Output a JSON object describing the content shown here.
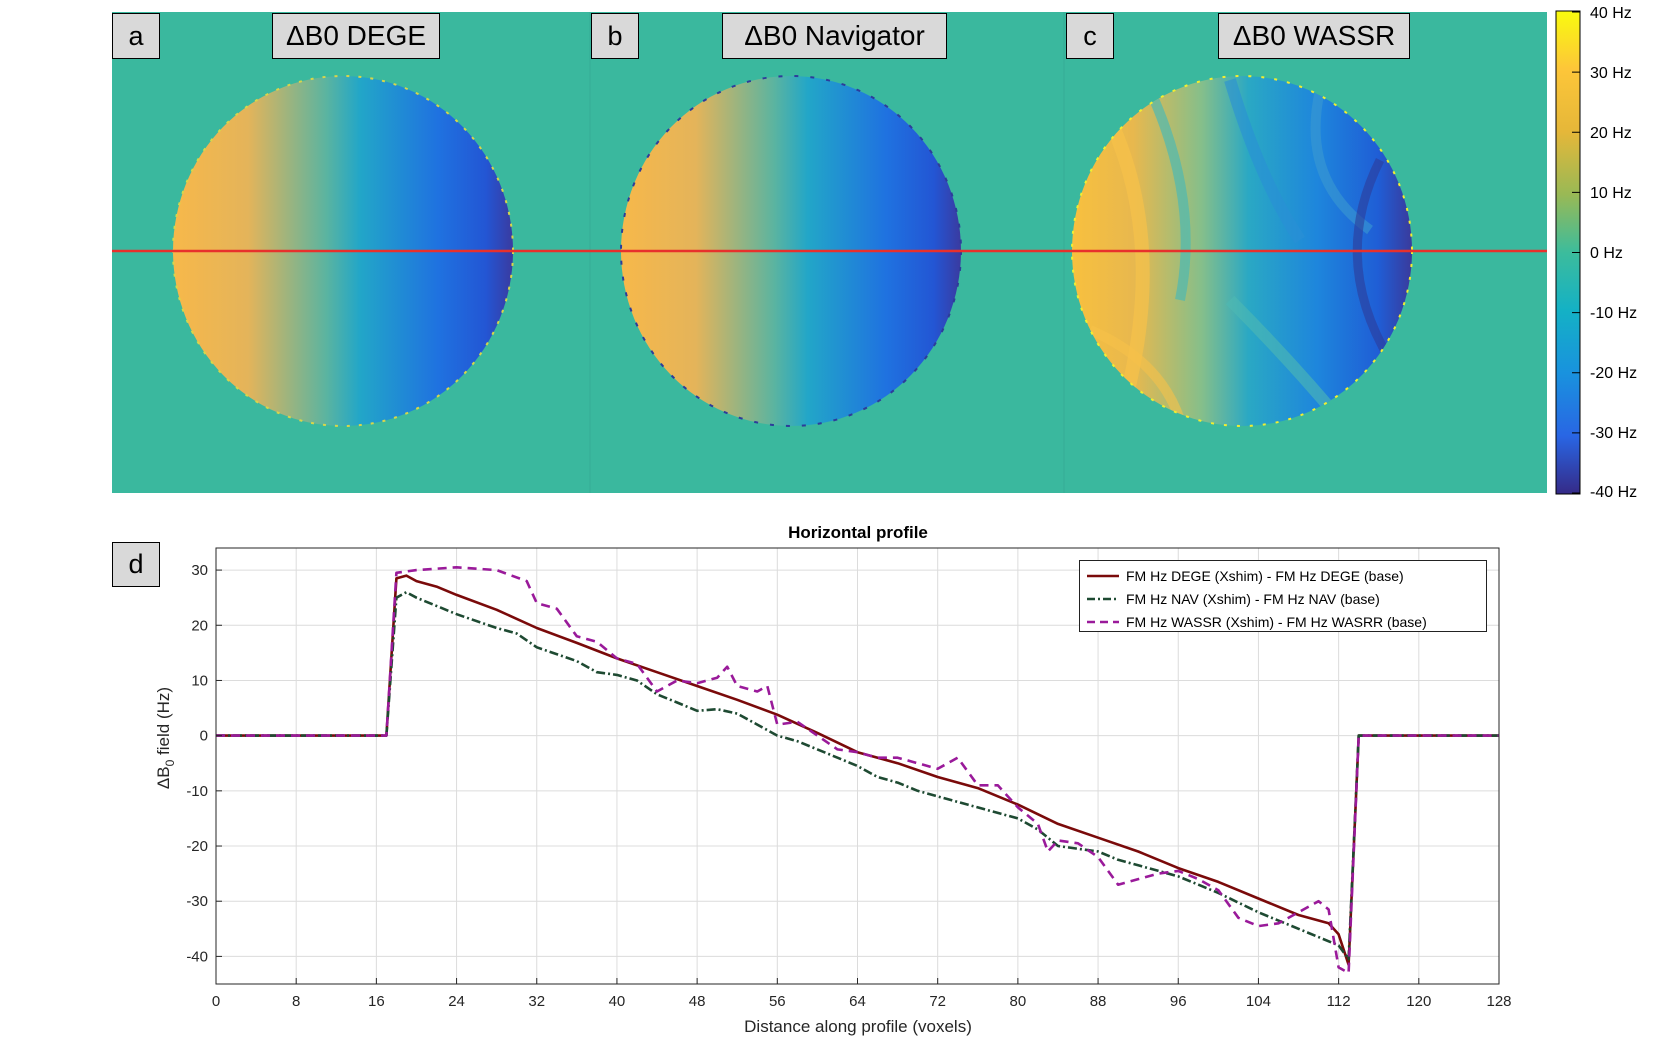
{
  "maps": {
    "panels": [
      {
        "tag": "a",
        "title": "ΔB0 DEGE"
      },
      {
        "tag": "b",
        "title": "ΔB0 Navigator"
      },
      {
        "tag": "c",
        "title": "ΔB0 WASSR"
      }
    ],
    "colorbar": {
      "labels": [
        "40 Hz",
        "30 Hz",
        "20 Hz",
        "10 Hz",
        "0 Hz",
        "-10 Hz",
        "-20 Hz",
        "-30 Hz",
        "-40 Hz"
      ],
      "range": [
        -40,
        40
      ]
    },
    "colors": {
      "background": "#3ab89e",
      "profile_line": "#e8302c"
    }
  },
  "profile": {
    "tag": "d",
    "chart_data": {
      "type": "line",
      "title": "Horizontal profile",
      "xlabel": "Distance along profile (voxels)",
      "ylabel_main": "ΔB",
      "ylabel_sub": "0",
      "ylabel_tail": " field (Hz)",
      "xlim": [
        0,
        128
      ],
      "ylim": [
        -45,
        34
      ],
      "xticks": [
        0,
        8,
        16,
        24,
        32,
        40,
        48,
        56,
        64,
        72,
        80,
        88,
        96,
        104,
        112,
        120,
        128
      ],
      "yticks": [
        30,
        20,
        10,
        0,
        -10,
        -20,
        -30,
        -40
      ],
      "grid": true,
      "legend_position": "top-right",
      "series": [
        {
          "name": "FM Hz DEGE (Xshim) - FM Hz DEGE (base)",
          "color": "#7a0a0a",
          "dash": "solid",
          "points": [
            [
              0,
              0
            ],
            [
              17,
              0
            ],
            [
              18,
              28.5
            ],
            [
              19,
              29
            ],
            [
              20,
              28
            ],
            [
              22,
              27
            ],
            [
              24,
              25.5
            ],
            [
              28,
              22.8
            ],
            [
              32,
              19.5
            ],
            [
              36,
              16.8
            ],
            [
              40,
              14
            ],
            [
              44,
              11.5
            ],
            [
              48,
              9
            ],
            [
              52,
              6.5
            ],
            [
              56,
              3.8
            ],
            [
              60,
              0.5
            ],
            [
              64,
              -3
            ],
            [
              68,
              -5
            ],
            [
              72,
              -7.5
            ],
            [
              76,
              -9.5
            ],
            [
              80,
              -12.5
            ],
            [
              84,
              -16
            ],
            [
              88,
              -18.5
            ],
            [
              92,
              -21
            ],
            [
              96,
              -24
            ],
            [
              100,
              -26.5
            ],
            [
              104,
              -29.5
            ],
            [
              108,
              -32.5
            ],
            [
              111,
              -34
            ],
            [
              112,
              -36
            ],
            [
              113,
              -41.5
            ],
            [
              114,
              0
            ],
            [
              128,
              0
            ]
          ]
        },
        {
          "name": "FM Hz NAV (Xshim) - FM Hz NAV (base)",
          "color": "#1e4a32",
          "dash": "dashdot",
          "points": [
            [
              0,
              0
            ],
            [
              17,
              0
            ],
            [
              18,
              25
            ],
            [
              19,
              26
            ],
            [
              20,
              25
            ],
            [
              22,
              23.5
            ],
            [
              24,
              22
            ],
            [
              28,
              19.5
            ],
            [
              30,
              18.5
            ],
            [
              32,
              16
            ],
            [
              36,
              13.5
            ],
            [
              38,
              11.5
            ],
            [
              40,
              11
            ],
            [
              42,
              10
            ],
            [
              44,
              7.5
            ],
            [
              46,
              6
            ],
            [
              48,
              4.5
            ],
            [
              50,
              4.8
            ],
            [
              52,
              4
            ],
            [
              54,
              2
            ],
            [
              56,
              0
            ],
            [
              58,
              -1
            ],
            [
              60,
              -2.5
            ],
            [
              62,
              -4
            ],
            [
              64,
              -5.5
            ],
            [
              66,
              -7.5
            ],
            [
              68,
              -8.5
            ],
            [
              70,
              -10
            ],
            [
              72,
              -11
            ],
            [
              74,
              -12
            ],
            [
              76,
              -13
            ],
            [
              78,
              -14
            ],
            [
              80,
              -15
            ],
            [
              82,
              -17
            ],
            [
              84,
              -20
            ],
            [
              86,
              -20.5
            ],
            [
              88,
              -21
            ],
            [
              90,
              -22.5
            ],
            [
              92,
              -23.5
            ],
            [
              96,
              -25.5
            ],
            [
              100,
              -28.5
            ],
            [
              104,
              -32
            ],
            [
              108,
              -35
            ],
            [
              112,
              -38
            ],
            [
              113,
              -40.5
            ],
            [
              114,
              0
            ],
            [
              128,
              0
            ]
          ]
        },
        {
          "name": "FM Hz WASSR (Xshim) - FM Hz WASRR (base)",
          "color": "#9a1a9a",
          "dash": "dashed",
          "points": [
            [
              0,
              0
            ],
            [
              17,
              0
            ],
            [
              18,
              29.5
            ],
            [
              20,
              30
            ],
            [
              24,
              30.5
            ],
            [
              28,
              30
            ],
            [
              31,
              28
            ],
            [
              32,
              24
            ],
            [
              34,
              23
            ],
            [
              36,
              18
            ],
            [
              38,
              17
            ],
            [
              40,
              14
            ],
            [
              42,
              13
            ],
            [
              44,
              8
            ],
            [
              46,
              10
            ],
            [
              48,
              9.5
            ],
            [
              50,
              10.5
            ],
            [
              51,
              12.5
            ],
            [
              52,
              9
            ],
            [
              54,
              8
            ],
            [
              55,
              9
            ],
            [
              56,
              2
            ],
            [
              58,
              2.5
            ],
            [
              60,
              0
            ],
            [
              62,
              -2.5
            ],
            [
              64,
              -3
            ],
            [
              66,
              -4
            ],
            [
              68,
              -4
            ],
            [
              70,
              -5
            ],
            [
              72,
              -6
            ],
            [
              74,
              -4
            ],
            [
              76,
              -9
            ],
            [
              78,
              -9
            ],
            [
              80,
              -13
            ],
            [
              82,
              -16
            ],
            [
              83,
              -21
            ],
            [
              84,
              -19
            ],
            [
              86,
              -19.5
            ],
            [
              88,
              -22
            ],
            [
              90,
              -27
            ],
            [
              92,
              -26
            ],
            [
              94,
              -25
            ],
            [
              96,
              -24.5
            ],
            [
              98,
              -26
            ],
            [
              100,
              -28
            ],
            [
              102,
              -33
            ],
            [
              104,
              -34.5
            ],
            [
              106,
              -34
            ],
            [
              108,
              -32
            ],
            [
              110,
              -30
            ],
            [
              111,
              -31.5
            ],
            [
              112,
              -42
            ],
            [
              113,
              -43
            ],
            [
              114,
              0
            ],
            [
              128,
              0
            ]
          ]
        }
      ]
    }
  }
}
